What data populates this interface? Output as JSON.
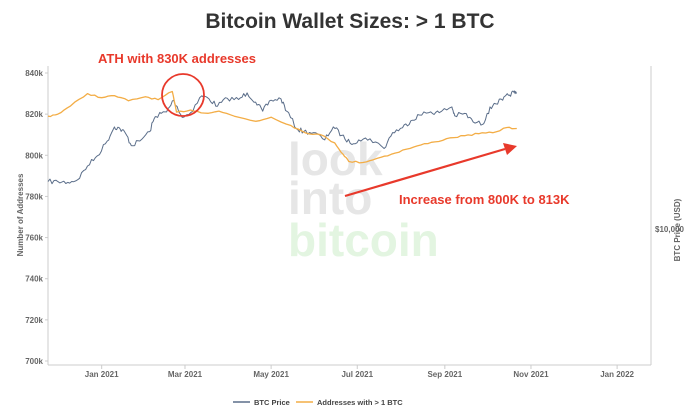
{
  "chart_data": {
    "type": "line",
    "title": "Bitcoin Wallet Sizes: > 1 BTC",
    "ylabel": "Number of Addresses",
    "y2label": "BTC Price (USD)",
    "ylim": [
      700000,
      840000
    ],
    "yticks": [
      {
        "value": 700000,
        "label": "700k"
      },
      {
        "value": 720000,
        "label": "720k"
      },
      {
        "value": 740000,
        "label": "740k"
      },
      {
        "value": 760000,
        "label": "760k"
      },
      {
        "value": 780000,
        "label": "780k"
      },
      {
        "value": 800000,
        "label": "800k"
      },
      {
        "value": 820000,
        "label": "820k"
      },
      {
        "value": 840000,
        "label": "840k"
      }
    ],
    "y2ticks": [
      {
        "value": 10000,
        "label": "$10,000"
      }
    ],
    "xlim": [
      "2020-11-24",
      "2022-01-25"
    ],
    "xticks": [
      {
        "date": "2021-01-01",
        "label": "Jan 2021"
      },
      {
        "date": "2021-03-01",
        "label": "Mar 2021"
      },
      {
        "date": "2021-05-01",
        "label": "May 2021"
      },
      {
        "date": "2021-07-01",
        "label": "Jul 2021"
      },
      {
        "date": "2021-09-01",
        "label": "Sep 2021"
      },
      {
        "date": "2021-11-01",
        "label": "Nov 2021"
      },
      {
        "date": "2022-01-01",
        "label": "Jan 2022"
      }
    ],
    "grid": false,
    "legend_position": "bottom",
    "series": [
      {
        "name": "BTC Price",
        "axis": "right",
        "color": "#5b6e8a",
        "points": [
          [
            "2020-11-24",
            19000
          ],
          [
            "2020-12-01",
            19000
          ],
          [
            "2020-12-08",
            18800
          ],
          [
            "2020-12-15",
            19500
          ],
          [
            "2020-12-22",
            23500
          ],
          [
            "2020-12-29",
            27000
          ],
          [
            "2021-01-05",
            33000
          ],
          [
            "2021-01-10",
            40000
          ],
          [
            "2021-01-14",
            39000
          ],
          [
            "2021-01-18",
            36500
          ],
          [
            "2021-01-22",
            31000
          ],
          [
            "2021-01-28",
            33000
          ],
          [
            "2021-02-04",
            37500
          ],
          [
            "2021-02-08",
            46000
          ],
          [
            "2021-02-12",
            48000
          ],
          [
            "2021-02-16",
            49000
          ],
          [
            "2021-02-21",
            57500
          ],
          [
            "2021-02-27",
            45500
          ],
          [
            "2021-03-05",
            48500
          ],
          [
            "2021-03-13",
            61000
          ],
          [
            "2021-03-18",
            58500
          ],
          [
            "2021-03-24",
            53000
          ],
          [
            "2021-03-31",
            59000
          ],
          [
            "2021-04-08",
            58000
          ],
          [
            "2021-04-14",
            63500
          ],
          [
            "2021-04-20",
            56000
          ],
          [
            "2021-04-25",
            49500
          ],
          [
            "2021-05-01",
            57500
          ],
          [
            "2021-05-08",
            58500
          ],
          [
            "2021-05-12",
            49500
          ],
          [
            "2021-05-19",
            39000
          ],
          [
            "2021-05-24",
            37500
          ],
          [
            "2021-05-31",
            37000
          ],
          [
            "2021-06-08",
            33500
          ],
          [
            "2021-06-14",
            40000
          ],
          [
            "2021-06-20",
            35600
          ],
          [
            "2021-06-26",
            32000
          ],
          [
            "2021-07-02",
            33500
          ],
          [
            "2021-07-10",
            34000
          ],
          [
            "2021-07-20",
            29800
          ],
          [
            "2021-07-26",
            37000
          ],
          [
            "2021-08-02",
            39500
          ],
          [
            "2021-08-08",
            43500
          ],
          [
            "2021-08-14",
            47000
          ],
          [
            "2021-08-22",
            49000
          ],
          [
            "2021-08-28",
            48500
          ],
          [
            "2021-09-06",
            52500
          ],
          [
            "2021-09-08",
            46500
          ],
          [
            "2021-09-15",
            48000
          ],
          [
            "2021-09-21",
            42800
          ],
          [
            "2021-09-28",
            41500
          ],
          [
            "2021-10-01",
            48000
          ],
          [
            "2021-10-06",
            55000
          ],
          [
            "2021-10-12",
            57500
          ],
          [
            "2021-10-16",
            61500
          ],
          [
            "2021-10-20",
            64000
          ],
          [
            "2021-10-22",
            63000
          ]
        ]
      },
      {
        "name": "Addresses with > 1 BTC",
        "axis": "left",
        "color": "#f3ad46",
        "points": [
          [
            "2020-11-24",
            819000
          ],
          [
            "2020-12-01",
            820000
          ],
          [
            "2020-12-10",
            824000
          ],
          [
            "2020-12-22",
            830000
          ],
          [
            "2021-01-01",
            828000
          ],
          [
            "2021-01-10",
            829000
          ],
          [
            "2021-01-20",
            826500
          ],
          [
            "2021-02-01",
            828500
          ],
          [
            "2021-02-10",
            827000
          ],
          [
            "2021-02-20",
            831000
          ],
          [
            "2021-02-23",
            821000
          ],
          [
            "2021-03-05",
            822000
          ],
          [
            "2021-03-15",
            820500
          ],
          [
            "2021-03-25",
            821500
          ],
          [
            "2021-04-05",
            819000
          ],
          [
            "2021-04-20",
            816500
          ],
          [
            "2021-05-01",
            818500
          ],
          [
            "2021-05-15",
            814500
          ],
          [
            "2021-05-25",
            811000
          ],
          [
            "2021-06-05",
            810000
          ],
          [
            "2021-06-15",
            806000
          ],
          [
            "2021-06-21",
            800500
          ],
          [
            "2021-06-25",
            797000
          ],
          [
            "2021-07-05",
            796500
          ],
          [
            "2021-07-15",
            798500
          ],
          [
            "2021-07-25",
            800500
          ],
          [
            "2021-08-05",
            803000
          ],
          [
            "2021-08-15",
            805000
          ],
          [
            "2021-08-25",
            806500
          ],
          [
            "2021-09-05",
            808500
          ],
          [
            "2021-09-15",
            809500
          ],
          [
            "2021-09-25",
            810500
          ],
          [
            "2021-10-05",
            811000
          ],
          [
            "2021-10-15",
            813500
          ],
          [
            "2021-10-22",
            813000
          ]
        ]
      }
    ],
    "annotations": [
      {
        "text": "ATH with 830K addresses",
        "color": "#e8392b"
      },
      {
        "text": "Increase from 800K to 813K",
        "color": "#e8392b"
      }
    ],
    "watermark": [
      "look",
      "into",
      "bitcoin"
    ]
  }
}
